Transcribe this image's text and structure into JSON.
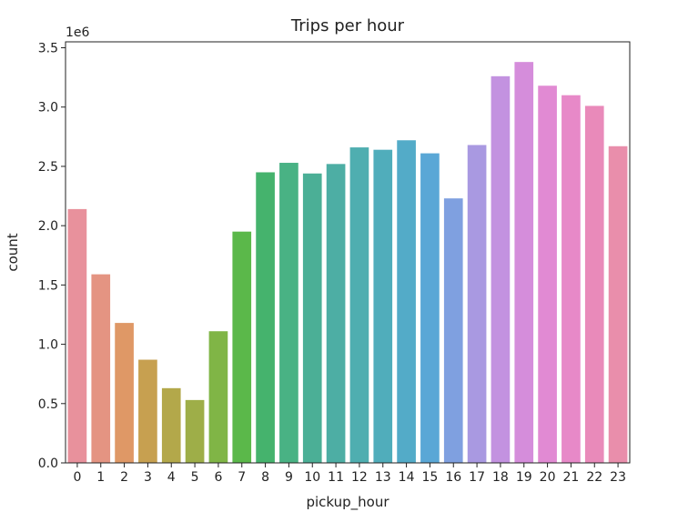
{
  "chart_data": {
    "type": "bar",
    "title": "Trips per hour",
    "xlabel": "pickup_hour",
    "ylabel": "count",
    "y_offset_label": "1e6",
    "categories": [
      "0",
      "1",
      "2",
      "3",
      "4",
      "5",
      "6",
      "7",
      "8",
      "9",
      "10",
      "11",
      "12",
      "13",
      "14",
      "15",
      "16",
      "17",
      "18",
      "19",
      "20",
      "21",
      "22",
      "23"
    ],
    "values": [
      2140000,
      1590000,
      1180000,
      870000,
      630000,
      530000,
      1110000,
      1950000,
      2450000,
      2530000,
      2440000,
      2520000,
      2660000,
      2640000,
      2720000,
      2610000,
      2230000,
      2680000,
      3260000,
      3380000,
      3180000,
      3100000,
      3010000,
      2670000
    ],
    "ylim": [
      0,
      3550000
    ],
    "y_ticks": [
      0,
      500000,
      1000000,
      1500000,
      2000000,
      2500000,
      3000000,
      3500000
    ],
    "y_tick_labels": [
      "0.0",
      "0.5",
      "1.0",
      "1.5",
      "2.0",
      "2.5",
      "3.0",
      "3.5"
    ],
    "bar_colors": [
      "#e8919c",
      "#e49482",
      "#df9866",
      "#c7a050",
      "#b3a84a",
      "#9eae48",
      "#80b546",
      "#5bb84a",
      "#45b36d",
      "#49b284",
      "#4baf96",
      "#4daea4",
      "#4faeb0",
      "#50adbb",
      "#53abc8",
      "#5aa7d6",
      "#7fa0e0",
      "#a999e1",
      "#c392e0",
      "#d58ddb",
      "#e18ad3",
      "#e789c8",
      "#e98aba",
      "#e98eab"
    ],
    "grid": false,
    "legend": "none"
  }
}
